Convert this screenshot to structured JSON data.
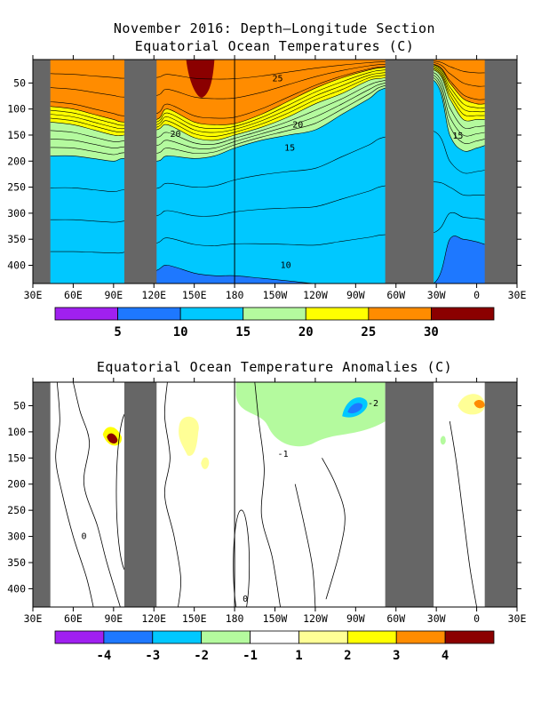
{
  "titles": {
    "top_line1": "November 2016: Depth–Longitude Section",
    "top_line2": "Equatorial Ocean Temperatures (C)",
    "bottom": "Equatorial Ocean Temperature Anomalies (C)"
  },
  "chart_data": [
    {
      "type": "heatmap",
      "title": "Equatorial Ocean Temperatures (C)",
      "x_ticks": [
        "30E",
        "60E",
        "90E",
        "120E",
        "150E",
        "180",
        "150W",
        "120W",
        "90W",
        "60W",
        "30W",
        "0",
        "30E"
      ],
      "x_tick_values_deg_east": [
        30,
        60,
        90,
        120,
        150,
        180,
        210,
        240,
        270,
        300,
        330,
        360,
        390
      ],
      "y_ticks": [
        "50",
        "100",
        "150",
        "200",
        "250",
        "300",
        "350",
        "400"
      ],
      "y_tick_values": [
        50,
        100,
        150,
        200,
        250,
        300,
        350,
        400
      ],
      "ylim": [
        435,
        5
      ],
      "xlim": [
        30,
        390
      ],
      "land_masks_deg_east": [
        [
          30,
          43
        ],
        [
          98,
          122
        ],
        [
          292,
          328
        ],
        [
          366,
          390
        ]
      ],
      "colorbar": {
        "labels": [
          "5",
          "10",
          "15",
          "20",
          "25",
          "30"
        ],
        "colors": [
          "#a020f0",
          "#1e78ff",
          "#00c8ff",
          "#b4fa9e",
          "#ffff00",
          "#ff8c00",
          "#8b0000"
        ]
      },
      "contour_labels": [
        "25",
        "20",
        "15",
        "20",
        "15",
        "10"
      ],
      "layers_temperature_by_depth": {
        "longitudes": [
          43,
          60,
          75,
          90,
          98,
          122,
          130,
          150,
          165,
          180,
          200,
          220,
          240,
          260,
          280,
          292,
          328,
          340,
          350,
          360,
          366
        ],
        "isotherm_25": [
          95,
          100,
          110,
          120,
          125,
          120,
          100,
          125,
          130,
          128,
          110,
          85,
          60,
          40,
          25,
          20,
          15,
          50,
          80,
          90,
          90
        ],
        "isotherm_20": [
          125,
          130,
          140,
          150,
          150,
          140,
          130,
          155,
          160,
          150,
          135,
          115,
          90,
          70,
          45,
          40,
          25,
          80,
          120,
          120,
          120
        ],
        "isotherm_15": [
          190,
          190,
          195,
          200,
          195,
          200,
          190,
          195,
          190,
          175,
          160,
          150,
          140,
          110,
          80,
          60,
          45,
          150,
          180,
          175,
          170
        ],
        "isotherm_10": [
          435,
          435,
          435,
          435,
          435,
          410,
          400,
          415,
          420,
          420,
          425,
          430,
          435,
          435,
          435,
          435,
          435,
          350,
          350,
          355,
          360
        ]
      }
    },
    {
      "type": "heatmap",
      "title": "Equatorial Ocean Temperature Anomalies (C)",
      "x_ticks": [
        "30E",
        "60E",
        "90E",
        "120E",
        "150E",
        "180",
        "150W",
        "120W",
        "90W",
        "60W",
        "30W",
        "0",
        "30E"
      ],
      "x_tick_values_deg_east": [
        30,
        60,
        90,
        120,
        150,
        180,
        210,
        240,
        270,
        300,
        330,
        360,
        390
      ],
      "y_ticks": [
        "50",
        "100",
        "150",
        "200",
        "250",
        "300",
        "350",
        "400"
      ],
      "y_tick_values": [
        50,
        100,
        150,
        200,
        250,
        300,
        350,
        400
      ],
      "ylim": [
        435,
        5
      ],
      "xlim": [
        30,
        390
      ],
      "land_masks_deg_east": [
        [
          30,
          43
        ],
        [
          98,
          122
        ],
        [
          292,
          328
        ],
        [
          366,
          390
        ]
      ],
      "colorbar": {
        "labels": [
          "-4",
          "-3",
          "-2",
          "-1",
          "1",
          "2",
          "3",
          "4"
        ],
        "colors": [
          "#a020f0",
          "#1e78ff",
          "#00c8ff",
          "#b4fa9e",
          "#ffffff",
          "#ffff96",
          "#ffff00",
          "#ff8c00",
          "#8b0000"
        ]
      },
      "contour_labels": [
        "-2",
        "-1",
        "0",
        "0"
      ],
      "features": [
        {
          "label": "cold anomaly",
          "value_range": [
            -2,
            -1
          ],
          "lon_range": [
            180,
            292
          ],
          "depth_range": [
            5,
            140
          ]
        },
        {
          "label": "strong cold core",
          "value_range": [
            -3,
            -2
          ],
          "lon_range": [
            259,
            280
          ],
          "depth_range": [
            30,
            75
          ]
        },
        {
          "label": "warm core",
          "value_range": [
            3,
            4
          ],
          "lon_range": [
            84,
            92
          ],
          "depth_range": [
            100,
            130
          ]
        },
        {
          "label": "warm anomaly",
          "value_range": [
            1,
            2
          ],
          "lon_range": [
            140,
            155
          ],
          "depth_range": [
            80,
            150
          ]
        },
        {
          "label": "warm anomaly",
          "value_range": [
            1,
            3
          ],
          "lon_range": [
            345,
            366
          ],
          "depth_range": [
            20,
            70
          ]
        }
      ]
    }
  ]
}
